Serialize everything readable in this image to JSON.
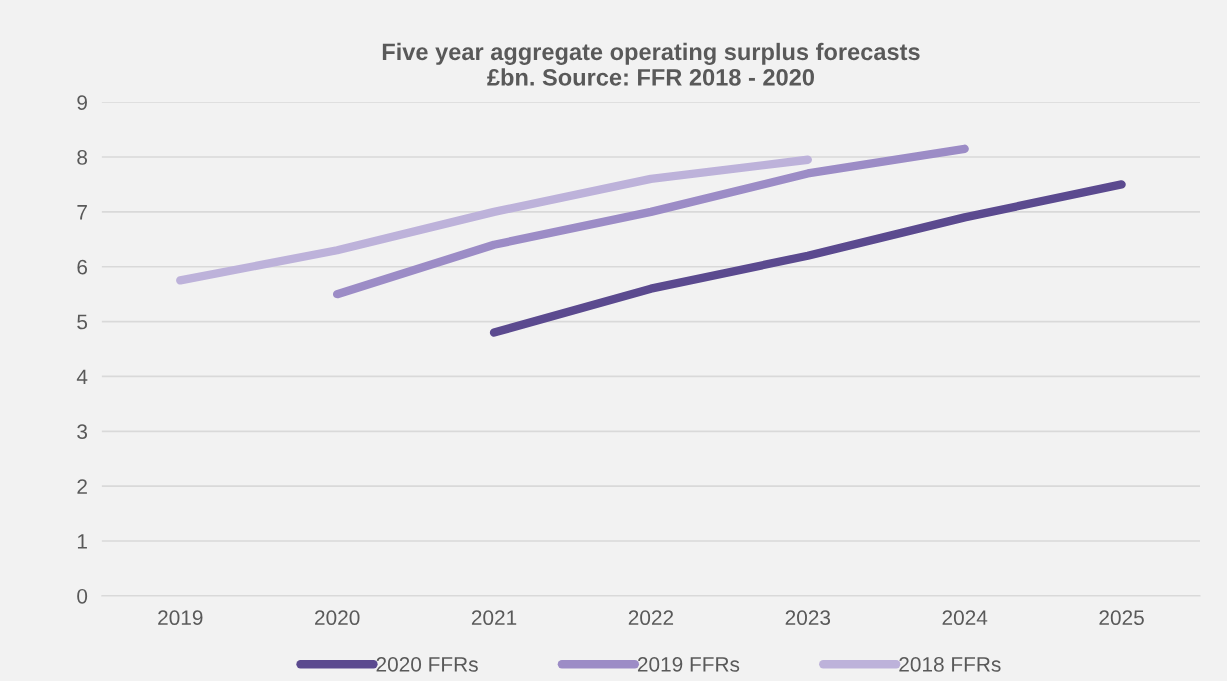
{
  "chart_data": {
    "type": "line",
    "title": "Five year aggregate operating surplus forecasts\n£bn. Source: FFR 2018 - 2020",
    "categories": [
      "2019",
      "2020",
      "2021",
      "2022",
      "2023",
      "2024",
      "2025"
    ],
    "series": [
      {
        "name": "2020 FFRs",
        "color": "#5b4a8f",
        "values": [
          null,
          null,
          4.8,
          5.6,
          6.2,
          6.9,
          7.5
        ]
      },
      {
        "name": "2019 FFRs",
        "color": "#9c8cc6",
        "values": [
          null,
          5.5,
          6.4,
          7.0,
          7.7,
          8.15,
          null
        ]
      },
      {
        "name": "2018 FFRs",
        "color": "#bdb2da",
        "values": [
          5.75,
          6.3,
          7.0,
          7.6,
          7.95,
          null,
          null
        ]
      }
    ],
    "ylim": [
      0,
      9
    ],
    "yticks": [
      0,
      1,
      2,
      3,
      4,
      5,
      6,
      7,
      8,
      9
    ],
    "grid": "y",
    "legend": "bottom",
    "marker": "none",
    "line_style": "solid"
  }
}
